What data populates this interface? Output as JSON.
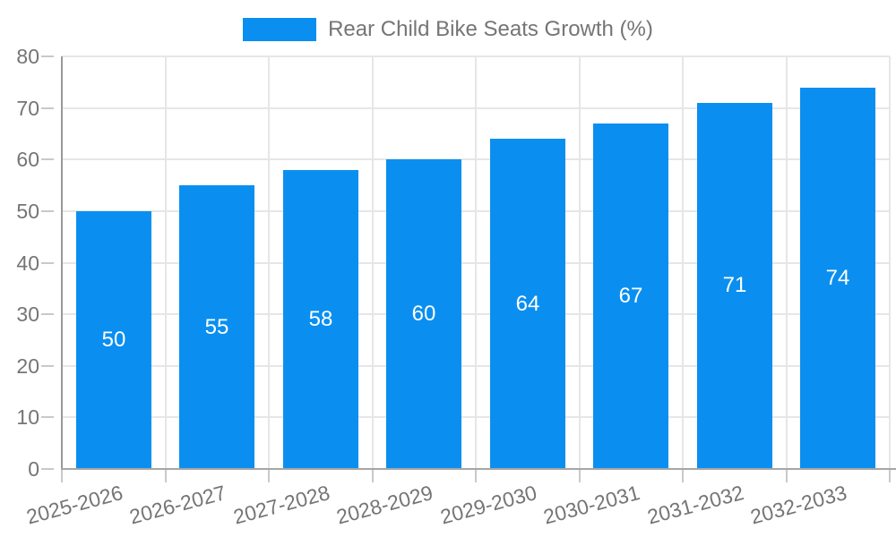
{
  "legend": {
    "label": "Rear Child Bike Seats Growth (%)"
  },
  "chart_data": {
    "type": "bar",
    "title": "Rear Child Bike Seats Growth (%)",
    "categories": [
      "2025-2026",
      "2026-2027",
      "2027-2028",
      "2028-2029",
      "2029-2030",
      "2030-2031",
      "2031-2032",
      "2032-2033"
    ],
    "values": [
      50,
      55,
      58,
      60,
      64,
      67,
      71,
      74
    ],
    "bar_value_labels": [
      "50",
      "55",
      "58",
      "60",
      "64",
      "67",
      "71",
      "74"
    ],
    "xlabel": "",
    "ylabel": "",
    "ylim": [
      0,
      80
    ],
    "y_tick_step": 10,
    "y_tick_labels": [
      "0",
      "10",
      "20",
      "30",
      "40",
      "50",
      "60",
      "70",
      "80"
    ],
    "x_label_rotation_deg": -15,
    "grid": true,
    "legend_position": "top-center",
    "colors": {
      "bar": "#0a8ff0",
      "bar_value_text": "#ffffff",
      "axis_text": "#757575",
      "legend_text": "#757575",
      "grid_line": "#e6e6e6",
      "axis_line": "#9e9e9e",
      "tick_line": "#c9c9c9",
      "background": "#ffffff"
    }
  }
}
